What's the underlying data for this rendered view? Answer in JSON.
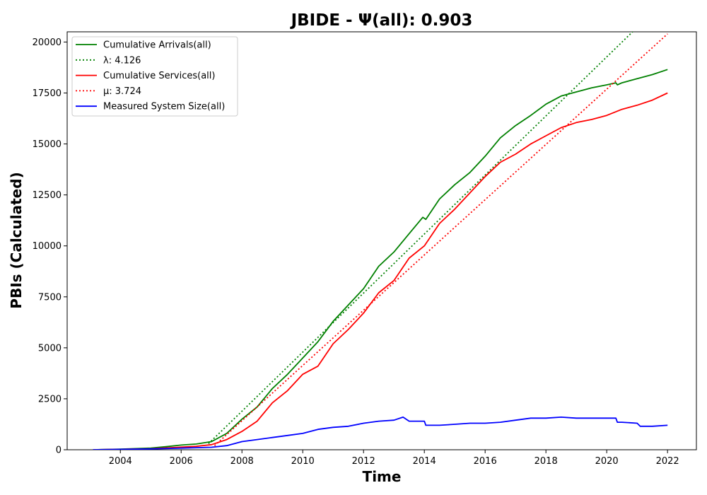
{
  "chart_data": {
    "type": "line",
    "title": "JBIDE -  Ψ(all): 0.903",
    "xlabel": "Time",
    "ylabel": "PBIs (Calculated)",
    "xlim": [
      2002.25,
      2022.95
    ],
    "ylim": [
      0,
      20500
    ],
    "x_ticks": [
      2004,
      2006,
      2008,
      2010,
      2012,
      2014,
      2016,
      2018,
      2020,
      2022
    ],
    "y_ticks": [
      0,
      2500,
      5000,
      7500,
      10000,
      12500,
      15000,
      17500,
      20000
    ],
    "grid": false,
    "legend_position": "top-left",
    "series": [
      {
        "name": "Cumulative Arrivals(all)",
        "color": "#008000",
        "style": "solid",
        "x": [
          2003.1,
          2004.0,
          2005.0,
          2005.5,
          2006.0,
          2006.5,
          2007.0,
          2007.5,
          2008.0,
          2008.5,
          2009.0,
          2009.5,
          2010.0,
          2010.5,
          2011.0,
          2011.5,
          2012.0,
          2012.5,
          2013.0,
          2013.5,
          2013.95,
          2014.05,
          2014.5,
          2015.0,
          2015.5,
          2016.0,
          2016.5,
          2017.0,
          2017.5,
          2018.0,
          2018.5,
          2019.0,
          2019.5,
          2020.0,
          2020.3,
          2020.35,
          2020.5,
          2021.0,
          2021.5,
          2022.0
        ],
        "y": [
          0,
          30,
          80,
          150,
          230,
          280,
          400,
          800,
          1500,
          2100,
          3000,
          3700,
          4500,
          5300,
          6300,
          7100,
          7900,
          9000,
          9700,
          10600,
          11400,
          11300,
          12300,
          13000,
          13600,
          14400,
          15300,
          15900,
          16400,
          16950,
          17350,
          17550,
          17750,
          17900,
          18000,
          17900,
          18000,
          18200,
          18400,
          18650
        ]
      },
      {
        "name": "λ: 4.126",
        "color": "#008000",
        "style": "dotted",
        "x": [
          2006.9,
          2020.85
        ],
        "y": [
          300,
          20500
        ]
      },
      {
        "name": "Cumulative Services(all)",
        "color": "#ff0000",
        "style": "solid",
        "x": [
          2003.1,
          2004.0,
          2005.0,
          2005.5,
          2006.0,
          2006.5,
          2007.0,
          2007.5,
          2008.0,
          2008.5,
          2009.0,
          2009.5,
          2010.0,
          2010.5,
          2011.0,
          2011.5,
          2012.0,
          2012.5,
          2013.0,
          2013.5,
          2014.0,
          2014.5,
          2015.0,
          2015.5,
          2016.0,
          2016.5,
          2017.0,
          2017.5,
          2018.0,
          2018.5,
          2019.0,
          2019.5,
          2020.0,
          2020.5,
          2021.0,
          2021.5,
          2022.0
        ],
        "y": [
          0,
          20,
          50,
          90,
          130,
          170,
          250,
          500,
          900,
          1400,
          2300,
          2900,
          3700,
          4100,
          5200,
          5900,
          6700,
          7700,
          8300,
          9400,
          10000,
          11100,
          11800,
          12600,
          13400,
          14100,
          14500,
          15000,
          15400,
          15800,
          16050,
          16200,
          16400,
          16700,
          16900,
          17150,
          17500
        ]
      },
      {
        "name": "μ: 3.724",
        "color": "#ff0000",
        "style": "dotted",
        "x": [
          2007.1,
          2022.0
        ],
        "y": [
          200,
          20400
        ]
      },
      {
        "name": "Measured System Size(all)",
        "color": "#0000ff",
        "style": "solid",
        "x": [
          2003.1,
          2004.0,
          2005.0,
          2006.0,
          2007.0,
          2007.5,
          2008.0,
          2008.5,
          2009.0,
          2009.5,
          2010.0,
          2010.5,
          2011.0,
          2011.5,
          2012.0,
          2012.5,
          2013.0,
          2013.3,
          2013.5,
          2014.0,
          2014.05,
          2014.5,
          2015.0,
          2015.5,
          2016.0,
          2016.5,
          2017.0,
          2017.5,
          2018.0,
          2018.5,
          2019.0,
          2019.5,
          2020.0,
          2020.3,
          2020.35,
          2020.5,
          2021.0,
          2021.1,
          2021.5,
          2022.0
        ],
        "y": [
          0,
          20,
          40,
          80,
          120,
          200,
          400,
          500,
          600,
          700,
          800,
          1000,
          1100,
          1150,
          1300,
          1400,
          1450,
          1600,
          1400,
          1400,
          1200,
          1200,
          1250,
          1300,
          1300,
          1350,
          1450,
          1550,
          1550,
          1600,
          1550,
          1550,
          1550,
          1550,
          1350,
          1350,
          1300,
          1150,
          1150,
          1200
        ]
      }
    ]
  }
}
